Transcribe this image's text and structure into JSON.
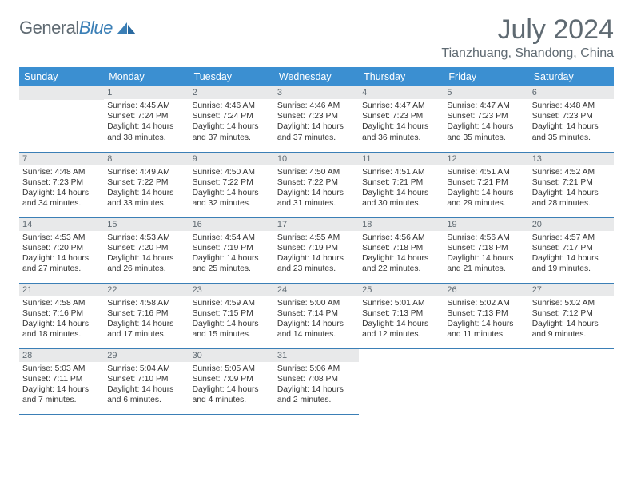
{
  "brand": {
    "name_gray": "General",
    "name_blue": "Blue"
  },
  "title": "July 2024",
  "location": "Tianzhuang, Shandong, China",
  "theme": {
    "header_bg": "#3b8fd1",
    "header_text": "#ffffff",
    "border_color": "#3b7fb6",
    "daybar_bg": "#e8e9ea",
    "text_color": "#333333",
    "muted_text": "#5f6a72",
    "page_bg": "#ffffff"
  },
  "weekdays": [
    "Sunday",
    "Monday",
    "Tuesday",
    "Wednesday",
    "Thursday",
    "Friday",
    "Saturday"
  ],
  "start_offset": 1,
  "days": [
    {
      "n": "1",
      "sunrise": "4:45 AM",
      "sunset": "7:24 PM",
      "daylight": "14 hours and 38 minutes."
    },
    {
      "n": "2",
      "sunrise": "4:46 AM",
      "sunset": "7:24 PM",
      "daylight": "14 hours and 37 minutes."
    },
    {
      "n": "3",
      "sunrise": "4:46 AM",
      "sunset": "7:23 PM",
      "daylight": "14 hours and 37 minutes."
    },
    {
      "n": "4",
      "sunrise": "4:47 AM",
      "sunset": "7:23 PM",
      "daylight": "14 hours and 36 minutes."
    },
    {
      "n": "5",
      "sunrise": "4:47 AM",
      "sunset": "7:23 PM",
      "daylight": "14 hours and 35 minutes."
    },
    {
      "n": "6",
      "sunrise": "4:48 AM",
      "sunset": "7:23 PM",
      "daylight": "14 hours and 35 minutes."
    },
    {
      "n": "7",
      "sunrise": "4:48 AM",
      "sunset": "7:23 PM",
      "daylight": "14 hours and 34 minutes."
    },
    {
      "n": "8",
      "sunrise": "4:49 AM",
      "sunset": "7:22 PM",
      "daylight": "14 hours and 33 minutes."
    },
    {
      "n": "9",
      "sunrise": "4:50 AM",
      "sunset": "7:22 PM",
      "daylight": "14 hours and 32 minutes."
    },
    {
      "n": "10",
      "sunrise": "4:50 AM",
      "sunset": "7:22 PM",
      "daylight": "14 hours and 31 minutes."
    },
    {
      "n": "11",
      "sunrise": "4:51 AM",
      "sunset": "7:21 PM",
      "daylight": "14 hours and 30 minutes."
    },
    {
      "n": "12",
      "sunrise": "4:51 AM",
      "sunset": "7:21 PM",
      "daylight": "14 hours and 29 minutes."
    },
    {
      "n": "13",
      "sunrise": "4:52 AM",
      "sunset": "7:21 PM",
      "daylight": "14 hours and 28 minutes."
    },
    {
      "n": "14",
      "sunrise": "4:53 AM",
      "sunset": "7:20 PM",
      "daylight": "14 hours and 27 minutes."
    },
    {
      "n": "15",
      "sunrise": "4:53 AM",
      "sunset": "7:20 PM",
      "daylight": "14 hours and 26 minutes."
    },
    {
      "n": "16",
      "sunrise": "4:54 AM",
      "sunset": "7:19 PM",
      "daylight": "14 hours and 25 minutes."
    },
    {
      "n": "17",
      "sunrise": "4:55 AM",
      "sunset": "7:19 PM",
      "daylight": "14 hours and 23 minutes."
    },
    {
      "n": "18",
      "sunrise": "4:56 AM",
      "sunset": "7:18 PM",
      "daylight": "14 hours and 22 minutes."
    },
    {
      "n": "19",
      "sunrise": "4:56 AM",
      "sunset": "7:18 PM",
      "daylight": "14 hours and 21 minutes."
    },
    {
      "n": "20",
      "sunrise": "4:57 AM",
      "sunset": "7:17 PM",
      "daylight": "14 hours and 19 minutes."
    },
    {
      "n": "21",
      "sunrise": "4:58 AM",
      "sunset": "7:16 PM",
      "daylight": "14 hours and 18 minutes."
    },
    {
      "n": "22",
      "sunrise": "4:58 AM",
      "sunset": "7:16 PM",
      "daylight": "14 hours and 17 minutes."
    },
    {
      "n": "23",
      "sunrise": "4:59 AM",
      "sunset": "7:15 PM",
      "daylight": "14 hours and 15 minutes."
    },
    {
      "n": "24",
      "sunrise": "5:00 AM",
      "sunset": "7:14 PM",
      "daylight": "14 hours and 14 minutes."
    },
    {
      "n": "25",
      "sunrise": "5:01 AM",
      "sunset": "7:13 PM",
      "daylight": "14 hours and 12 minutes."
    },
    {
      "n": "26",
      "sunrise": "5:02 AM",
      "sunset": "7:13 PM",
      "daylight": "14 hours and 11 minutes."
    },
    {
      "n": "27",
      "sunrise": "5:02 AM",
      "sunset": "7:12 PM",
      "daylight": "14 hours and 9 minutes."
    },
    {
      "n": "28",
      "sunrise": "5:03 AM",
      "sunset": "7:11 PM",
      "daylight": "14 hours and 7 minutes."
    },
    {
      "n": "29",
      "sunrise": "5:04 AM",
      "sunset": "7:10 PM",
      "daylight": "14 hours and 6 minutes."
    },
    {
      "n": "30",
      "sunrise": "5:05 AM",
      "sunset": "7:09 PM",
      "daylight": "14 hours and 4 minutes."
    },
    {
      "n": "31",
      "sunrise": "5:06 AM",
      "sunset": "7:08 PM",
      "daylight": "14 hours and 2 minutes."
    }
  ],
  "labels": {
    "sunrise": "Sunrise:",
    "sunset": "Sunset:",
    "daylight": "Daylight:"
  }
}
